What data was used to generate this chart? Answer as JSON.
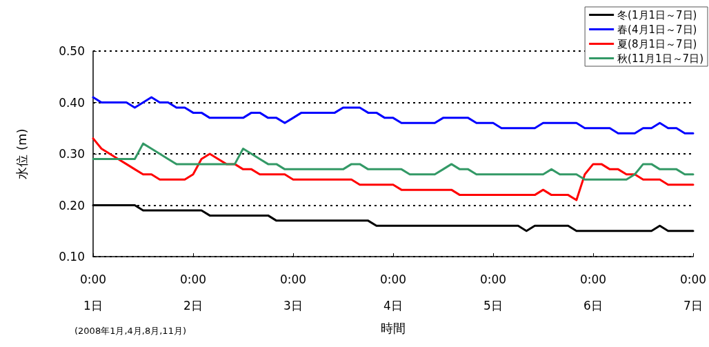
{
  "chart_data": {
    "type": "line",
    "xlabel": "時間",
    "ylabel": "水位 (m)",
    "annotations": [
      "(2008年1月,4月,8月,11月)"
    ],
    "categories": [
      "0:00\n1日",
      null,
      null,
      null,
      null,
      null,
      null,
      null,
      null,
      null,
      null,
      null,
      "0:00\n2日",
      null,
      null,
      null,
      null,
      null,
      null,
      null,
      null,
      null,
      null,
      null,
      "0:00\n3日",
      null,
      null,
      null,
      null,
      null,
      null,
      null,
      null,
      null,
      null,
      null,
      "0:00\n4日",
      null,
      null,
      null,
      null,
      null,
      null,
      null,
      null,
      null,
      null,
      null,
      "0:00\n5日",
      null,
      null,
      null,
      null,
      null,
      null,
      null,
      null,
      null,
      null,
      null,
      "0:00\n6日",
      null,
      null,
      null,
      null,
      null,
      null,
      null,
      null,
      null,
      null,
      null,
      "0:00\n7日"
    ],
    "ylim": [
      0.1,
      0.5
    ],
    "yticks": [
      {
        "value": 0.1,
        "label": "0.10"
      },
      {
        "value": 0.2,
        "label": "0.20"
      },
      {
        "value": 0.3,
        "label": "0.30"
      },
      {
        "value": 0.4,
        "label": "0.40"
      },
      {
        "value": 0.5,
        "label": "0.50"
      }
    ],
    "grid": "y",
    "legend": "top right",
    "marker": "none",
    "line_style": "solid",
    "series": [
      {
        "name": "冬(1月1日～7日)",
        "color": "#000000",
        "values": [
          0.2,
          0.2,
          0.2,
          0.2,
          0.2,
          0.2,
          0.19,
          0.19,
          0.19,
          0.19,
          0.19,
          0.19,
          0.19,
          0.19,
          0.18,
          0.18,
          0.18,
          0.18,
          0.18,
          0.18,
          0.18,
          0.18,
          0.17,
          0.17,
          0.17,
          0.17,
          0.17,
          0.17,
          0.17,
          0.17,
          0.17,
          0.17,
          0.17,
          0.17,
          0.16,
          0.16,
          0.16,
          0.16,
          0.16,
          0.16,
          0.16,
          0.16,
          0.16,
          0.16,
          0.16,
          0.16,
          0.16,
          0.16,
          0.16,
          0.16,
          0.16,
          0.16,
          0.15,
          0.16,
          0.16,
          0.16,
          0.16,
          0.16,
          0.15,
          0.15,
          0.15,
          0.15,
          0.15,
          0.15,
          0.15,
          0.15,
          0.15,
          0.15,
          0.16,
          0.15,
          0.15,
          0.15,
          0.15
        ]
      },
      {
        "name": "春(4月1日～7日)",
        "color": "#0000ff",
        "values": [
          0.41,
          0.4,
          0.4,
          0.4,
          0.4,
          0.39,
          0.4,
          0.41,
          0.4,
          0.4,
          0.39,
          0.39,
          0.38,
          0.38,
          0.37,
          0.37,
          0.37,
          0.37,
          0.37,
          0.38,
          0.38,
          0.37,
          0.37,
          0.36,
          0.37,
          0.38,
          0.38,
          0.38,
          0.38,
          0.38,
          0.39,
          0.39,
          0.39,
          0.38,
          0.38,
          0.37,
          0.37,
          0.36,
          0.36,
          0.36,
          0.36,
          0.36,
          0.37,
          0.37,
          0.37,
          0.37,
          0.36,
          0.36,
          0.36,
          0.35,
          0.35,
          0.35,
          0.35,
          0.35,
          0.36,
          0.36,
          0.36,
          0.36,
          0.36,
          0.35,
          0.35,
          0.35,
          0.35,
          0.34,
          0.34,
          0.34,
          0.35,
          0.35,
          0.36,
          0.35,
          0.35,
          0.34,
          0.34
        ]
      },
      {
        "name": "夏(8月1日～7日)",
        "color": "#ff0000",
        "values": [
          0.33,
          0.31,
          0.3,
          0.29,
          0.28,
          0.27,
          0.26,
          0.26,
          0.25,
          0.25,
          0.25,
          0.25,
          0.26,
          0.29,
          0.3,
          0.29,
          0.28,
          0.28,
          0.27,
          0.27,
          0.26,
          0.26,
          0.26,
          0.26,
          0.25,
          0.25,
          0.25,
          0.25,
          0.25,
          0.25,
          0.25,
          0.25,
          0.24,
          0.24,
          0.24,
          0.24,
          0.24,
          0.23,
          0.23,
          0.23,
          0.23,
          0.23,
          0.23,
          0.23,
          0.22,
          0.22,
          0.22,
          0.22,
          0.22,
          0.22,
          0.22,
          0.22,
          0.22,
          0.22,
          0.23,
          0.22,
          0.22,
          0.22,
          0.21,
          0.26,
          0.28,
          0.28,
          0.27,
          0.27,
          0.26,
          0.26,
          0.25,
          0.25,
          0.25,
          0.24,
          0.24,
          0.24,
          0.24
        ]
      },
      {
        "name": "秋(11月1日～7日)",
        "color": "#339966",
        "values": [
          0.29,
          0.29,
          0.29,
          0.29,
          0.29,
          0.29,
          0.32,
          0.31,
          0.3,
          0.29,
          0.28,
          0.28,
          0.28,
          0.28,
          0.28,
          0.28,
          0.28,
          0.28,
          0.31,
          0.3,
          0.29,
          0.28,
          0.28,
          0.27,
          0.27,
          0.27,
          0.27,
          0.27,
          0.27,
          0.27,
          0.27,
          0.28,
          0.28,
          0.27,
          0.27,
          0.27,
          0.27,
          0.27,
          0.26,
          0.26,
          0.26,
          0.26,
          0.27,
          0.28,
          0.27,
          0.27,
          0.26,
          0.26,
          0.26,
          0.26,
          0.26,
          0.26,
          0.26,
          0.26,
          0.26,
          0.27,
          0.26,
          0.26,
          0.26,
          0.25,
          0.25,
          0.25,
          0.25,
          0.25,
          0.25,
          0.26,
          0.28,
          0.28,
          0.27,
          0.27,
          0.27,
          0.26,
          0.26
        ]
      }
    ]
  }
}
